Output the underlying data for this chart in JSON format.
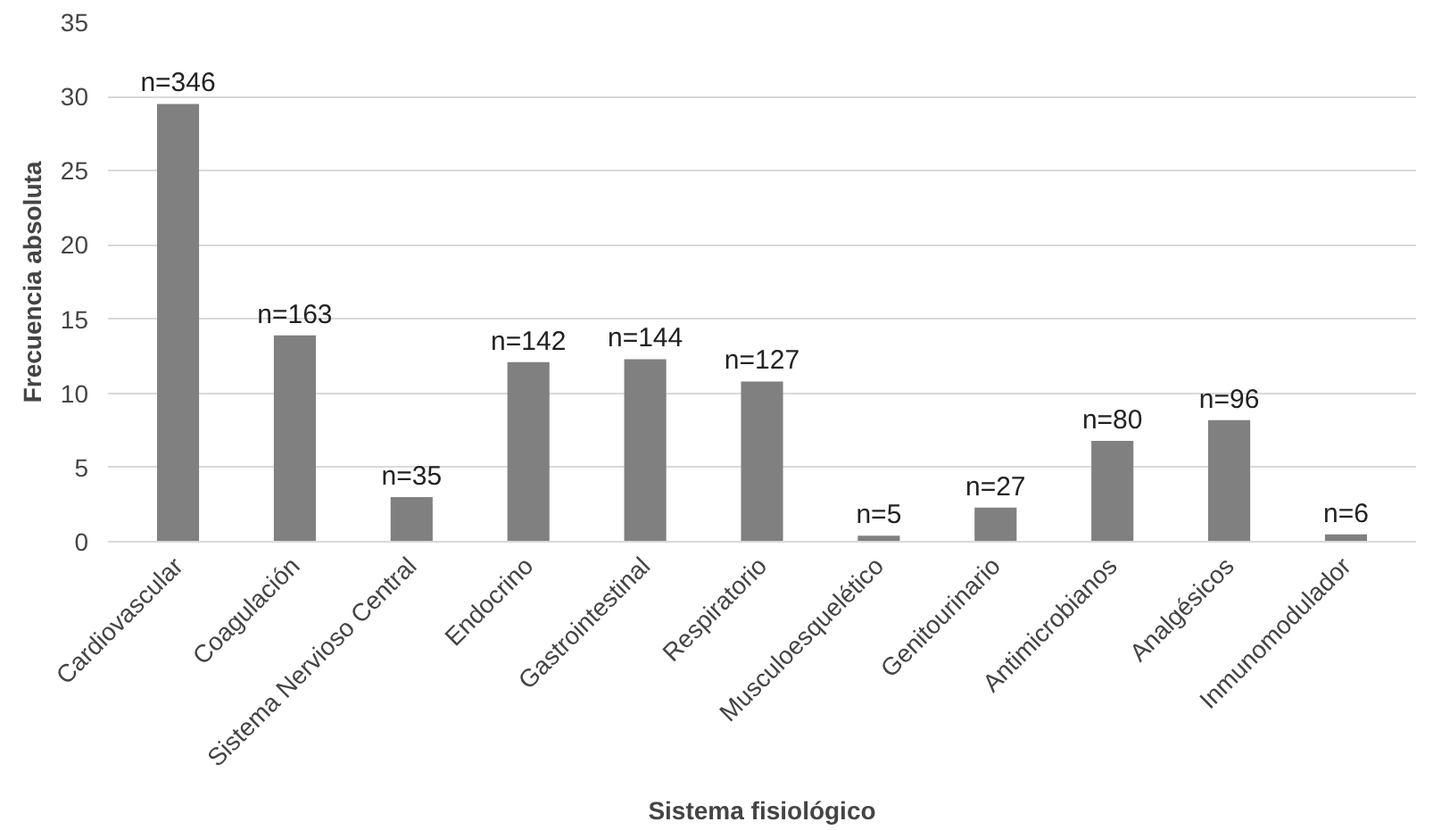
{
  "chart_data": {
    "type": "bar",
    "xlabel": "Sistema fisiológico",
    "ylabel": "Frecuencia absoluta",
    "categories": [
      "Cardiovascular",
      "Coagulación",
      "Sistema Nervioso Central",
      "Endocrino",
      "Gastrointestinal",
      "Respiratorio",
      "Musculoesquelético",
      "Genitourinario",
      "Antimicrobianos",
      "Analgésicos",
      "Inmunomodulador"
    ],
    "values": [
      29.5,
      13.9,
      3.0,
      12.1,
      12.3,
      10.8,
      0.4,
      2.3,
      6.8,
      8.2,
      0.5
    ],
    "annotations": [
      {
        "text": "n=346",
        "x": "Cardiovascular",
        "y": 29.5
      },
      {
        "text": "n=163",
        "x": "Coagulación",
        "y": 13.9
      },
      {
        "text": "n=35",
        "x": "Sistema Nervioso Central",
        "y": 3.0
      },
      {
        "text": "n=142",
        "x": "Endocrino",
        "y": 12.1
      },
      {
        "text": "n=144",
        "x": "Gastrointestinal",
        "y": 12.3
      },
      {
        "text": "n=127",
        "x": "Respiratorio",
        "y": 10.8
      },
      {
        "text": "n=5",
        "x": "Musculoesquelético",
        "y": 0.4
      },
      {
        "text": "n=27",
        "x": "Genitourinario",
        "y": 2.3
      },
      {
        "text": "n=80",
        "x": "Antimicrobianos",
        "y": 6.8
      },
      {
        "text": "n=96",
        "x": "Analgésicos",
        "y": 8.2
      },
      {
        "text": "n=6",
        "x": "Inmunomodulador",
        "y": 0.5
      }
    ],
    "color": "#808080",
    "ylim": [
      0,
      35
    ],
    "yticks": [
      0,
      5,
      10,
      15,
      20,
      25,
      30,
      35
    ],
    "grid": "y"
  }
}
